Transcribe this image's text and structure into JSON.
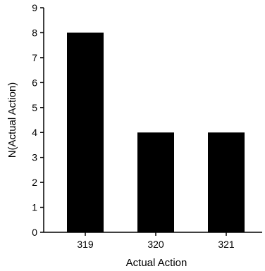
{
  "chart_data": {
    "type": "bar",
    "title": "",
    "xlabel": "Actual Action",
    "ylabel": "N(Actual Action)",
    "categories": [
      "319",
      "320",
      "321"
    ],
    "values": [
      8,
      4,
      4
    ],
    "ylim": [
      0,
      9
    ],
    "yticks": [
      "0",
      "1",
      "2",
      "3",
      "4",
      "5",
      "6",
      "7",
      "8",
      "9"
    ],
    "grid": false,
    "legend": "none",
    "bar_color": "#000000",
    "axis_color": "#000000"
  }
}
